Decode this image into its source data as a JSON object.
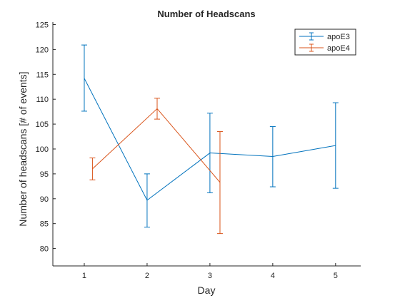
{
  "chart_data": {
    "type": "line",
    "title": "Number of Headscans",
    "xlabel": "Day",
    "ylabel": "Number of headscans [# of events]",
    "xlim": [
      0.5,
      5.4
    ],
    "ylim": [
      76.5,
      125.5
    ],
    "xticks": [
      1,
      2,
      3,
      4,
      5
    ],
    "yticks": [
      80,
      85,
      90,
      95,
      100,
      105,
      110,
      115,
      120,
      125
    ],
    "grid": false,
    "legend_position": "top-right",
    "series": [
      {
        "name": "apoE3",
        "color": "#0072BD",
        "x": [
          1,
          2,
          3,
          4,
          5
        ],
        "y": [
          114.2,
          89.7,
          99.2,
          98.5,
          100.7
        ],
        "err_low": [
          107.6,
          84.3,
          91.2,
          92.4,
          92.1
        ],
        "err_high": [
          120.9,
          95.0,
          107.2,
          104.5,
          109.3
        ]
      },
      {
        "name": "apoE4",
        "color": "#D95319",
        "x": [
          1.13,
          2.16,
          3.16
        ],
        "y": [
          96.0,
          108.1,
          93.3
        ],
        "err_low": [
          93.8,
          106.0,
          83.0
        ],
        "err_high": [
          98.2,
          110.2,
          103.5
        ]
      }
    ]
  }
}
